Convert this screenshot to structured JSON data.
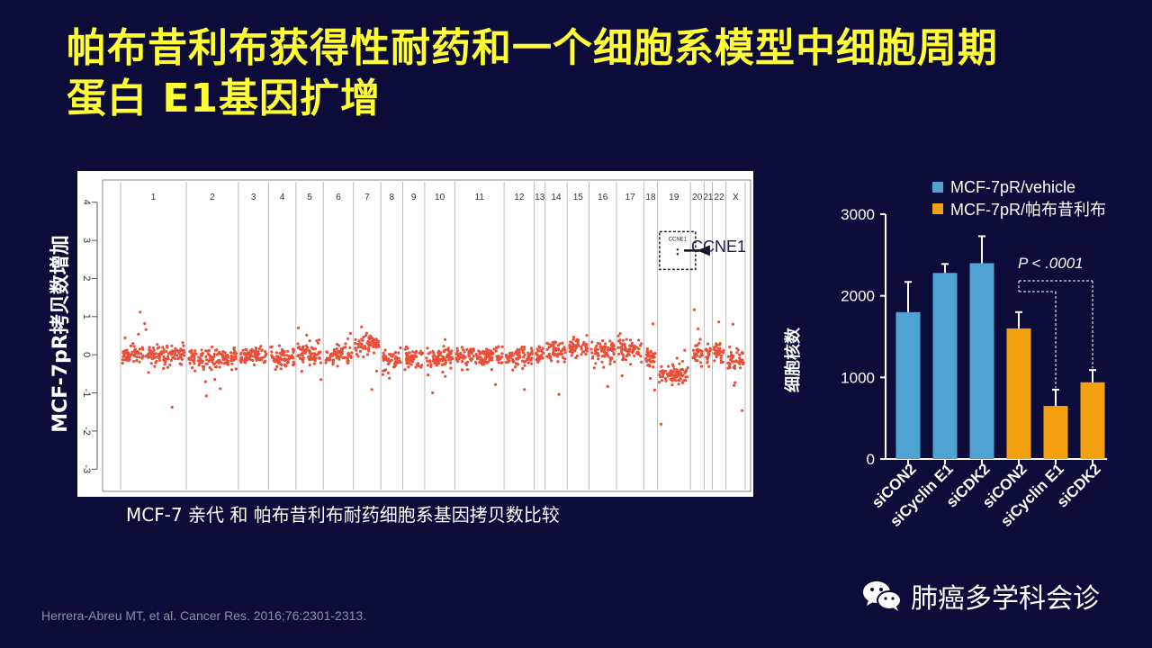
{
  "slide": {
    "title_line1": "帕布昔利布获得性耐药和一个细胞系模型中细胞周期",
    "title_line2": "蛋白 E1基因扩增",
    "reference": "Herrera-Abreu MT, et al. Cancer Res. 2016;76:2301-2313.",
    "brand": "肺癌多学科会诊"
  },
  "colors": {
    "background": "#0c0b3a",
    "title": "#ffff33",
    "points": "#e8503a",
    "vehicle": "#4fa3d3",
    "palbociclib": "#f5a010"
  },
  "chart_data": [
    {
      "type": "scatter",
      "title": "",
      "ylabel": "MCF-7pR拷贝数增加",
      "caption": "MCF-7 亲代 和 帕布昔利布耐药细胞系基因拷贝数比较",
      "ylim": [
        -3.3,
        4.3
      ],
      "yticks": [
        4,
        3,
        2,
        1,
        0,
        -1,
        -2,
        -3
      ],
      "chromosomes": [
        "1",
        "2",
        "3",
        "4",
        "5",
        "6",
        "7",
        "8",
        "9",
        "10",
        "11",
        "12",
        "13",
        "14",
        "15",
        "16",
        "17",
        "18",
        "19",
        "20",
        "21",
        "22",
        "X"
      ],
      "chromosome_weights": [
        2.4,
        1.9,
        1.1,
        1.0,
        1.0,
        1.1,
        1.0,
        0.8,
        0.8,
        1.1,
        1.8,
        1.1,
        0.4,
        0.8,
        0.8,
        1.0,
        1.0,
        0.5,
        1.2,
        0.5,
        0.3,
        0.5,
        0.7
      ],
      "segment_means": [
        0.0,
        -0.1,
        -0.05,
        -0.08,
        0.05,
        0.0,
        0.3,
        -0.15,
        -0.1,
        -0.05,
        -0.05,
        -0.05,
        0.0,
        0.1,
        0.2,
        0.1,
        0.15,
        -0.05,
        -0.5,
        0.05,
        0.0,
        0.05,
        -0.15
      ],
      "highlight": {
        "chromosome": "19",
        "box_label": "CCNE1",
        "y": 2.9,
        "arrow_label": "CCNE1"
      }
    },
    {
      "type": "bar",
      "categories": [
        "siCON2",
        "siCyclin E1",
        "siCDK2",
        "siCON2",
        "siCyclin E1",
        "siCDK2"
      ],
      "series": [
        {
          "name": "MCF-7pR/vehicle",
          "values": [
            1800,
            2280,
            2400,
            null,
            null,
            null
          ],
          "errors": [
            370,
            110,
            330,
            null,
            null,
            null
          ]
        },
        {
          "name": "MCF-7pR/帕布昔利布",
          "values": [
            null,
            null,
            null,
            1600,
            650,
            940
          ],
          "errors": [
            null,
            null,
            null,
            200,
            200,
            150
          ]
        }
      ],
      "ylabel": "细胞核数",
      "xlabel": "",
      "ylim": [
        0,
        3000
      ],
      "yticks": [
        0,
        1000,
        2000,
        3000
      ],
      "annotation": "P < .0001"
    }
  ]
}
